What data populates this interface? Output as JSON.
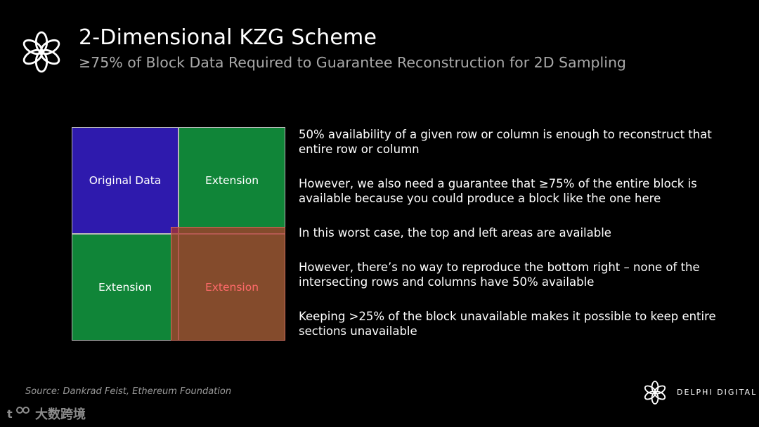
{
  "header": {
    "title": "2-Dimensional KZG Scheme",
    "subtitle": "≥75% of Block Data Required to Guarantee Reconstruction for 2D Sampling"
  },
  "diagram": {
    "cells": {
      "original": "Original Data",
      "extension_top_right": "Extension",
      "extension_bottom_left": "Extension",
      "extension_bottom_right": "Extension"
    },
    "colors": {
      "original": "#2e1aad",
      "extension": "#108538",
      "unavailable_overlay": "#b23428",
      "unavailable_label": "#ff6a6a"
    }
  },
  "bullets": [
    "50% availability of a given row or column is enough to reconstruct that entire row or column",
    "However, we also need a guarantee that ≥75% of the entire block is available because you could produce a block like the one here",
    "In this worst case, the top and left areas are available",
    "However, there’s no way to reproduce the bottom right – none of the intersecting rows and columns have 50% available",
    "Keeping >25% of the block unavailable makes it possible to keep entire sections unavailable"
  ],
  "footer": {
    "source": "Source: Dankrad Feist, Ethereum Foundation",
    "brand": "DELPHI DIGITAL",
    "watermark": "大数跨境"
  },
  "icons": {
    "header_logo": "flower-logo-icon",
    "brand_logo": "delphi-logo-icon"
  }
}
